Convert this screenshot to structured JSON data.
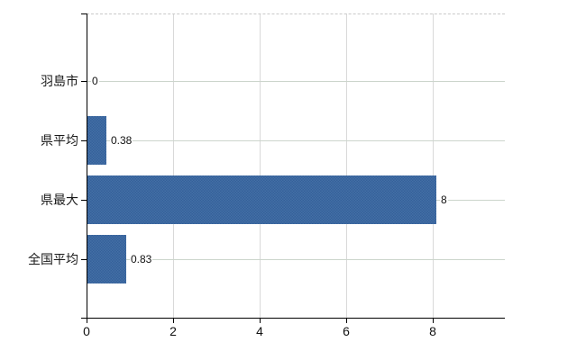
{
  "chart_data": {
    "type": "bar",
    "orientation": "horizontal",
    "title": "",
    "categories": [
      "羽島市",
      "県平均",
      "県最大",
      "全国平均"
    ],
    "values": [
      0,
      0.38,
      8,
      0.83
    ],
    "data_labels": [
      "0",
      "0.38",
      "8",
      "0.83"
    ],
    "x_ticks": [
      "0",
      "2",
      "4",
      "6",
      "8"
    ],
    "x_tick_values": [
      0,
      2,
      4,
      6,
      8
    ],
    "xlim": [
      0,
      9.7
    ],
    "xlabel": "",
    "ylabel": "",
    "grid": true,
    "legend": false,
    "colors": {
      "bar_fill": "#4470a5",
      "bar_texture": "#35609a",
      "axis": "#000000",
      "vertical_grid": "#d9d9d9",
      "horizontal_grid": "#ccd5cc",
      "top_border_dashed": "#c9c9c9",
      "text": "#1a1a1a"
    }
  }
}
